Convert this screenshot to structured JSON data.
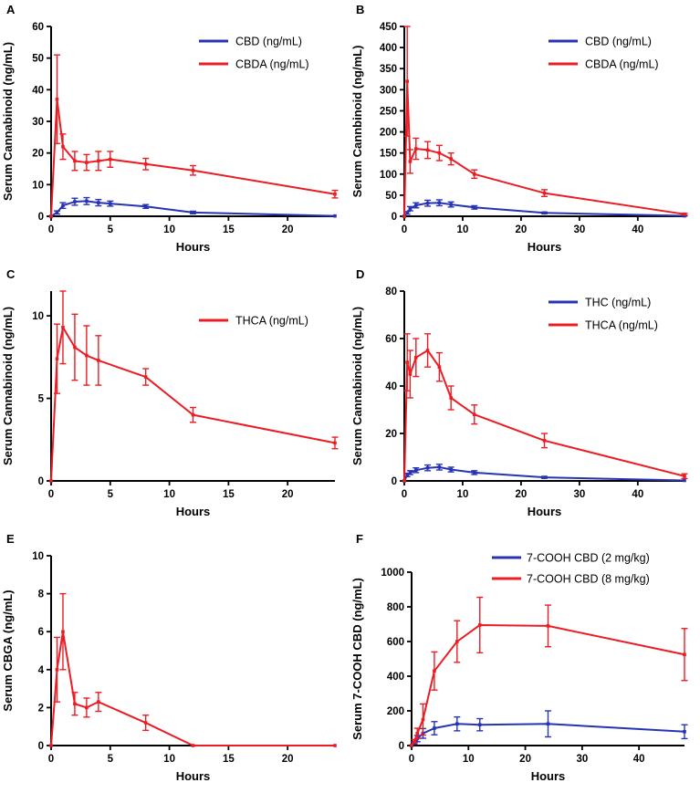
{
  "figure": {
    "background": "#ffffff",
    "accent_blue": "#2733b5",
    "accent_red": "#eb1c23"
  },
  "chart_data": [
    {
      "type": "line",
      "label": "A",
      "xlabel": "Hours",
      "ylabel": "Serum Cannabinoid (ng/mL)",
      "xlim": [
        0,
        24
      ],
      "ylim": [
        0,
        60
      ],
      "xticks": [
        0,
        5,
        10,
        15,
        20
      ],
      "yticks": [
        0,
        10,
        20,
        30,
        40,
        50,
        60
      ],
      "grid": false,
      "legend_position": "top-right",
      "series": [
        {
          "name": "CBD (ng/mL)",
          "color": "#2733b5",
          "x": [
            0,
            0.5,
            1,
            2,
            3,
            4,
            5,
            8,
            12,
            24
          ],
          "y": [
            0,
            1.2,
            3.4,
            4.6,
            4.8,
            4.3,
            4.0,
            3.1,
            1.2,
            0.1
          ],
          "err": [
            0,
            0.5,
            0.9,
            1.1,
            1.1,
            1.0,
            0.8,
            0.6,
            0.4,
            0
          ]
        },
        {
          "name": "CBDA (ng/mL)",
          "color": "#eb1c23",
          "x": [
            0,
            0.5,
            1,
            2,
            3,
            4,
            5,
            8,
            12,
            24
          ],
          "y": [
            0,
            37,
            22,
            17.5,
            17,
            17.5,
            18,
            16.5,
            14.5,
            7
          ],
          "err": [
            0,
            14,
            4,
            3,
            2.5,
            3,
            2.5,
            1.8,
            1.5,
            1.2
          ]
        }
      ]
    },
    {
      "type": "line",
      "label": "B",
      "xlabel": "Hours",
      "ylabel": "Serum Cannbinoid (ng/mL)",
      "xlim": [
        0,
        48
      ],
      "ylim": [
        0,
        450
      ],
      "xticks": [
        0,
        10,
        20,
        30,
        40
      ],
      "yticks": [
        0,
        50,
        100,
        150,
        200,
        250,
        300,
        350,
        400,
        450
      ],
      "grid": false,
      "legend_position": "top-right",
      "series": [
        {
          "name": "CBD (ng/mL)",
          "color": "#2733b5",
          "x": [
            0,
            0.5,
            1,
            2,
            4,
            6,
            8,
            12,
            24,
            48
          ],
          "y": [
            0,
            8,
            18,
            26,
            31,
            32,
            28,
            21,
            8,
            1
          ],
          "err": [
            0,
            3,
            5,
            6,
            7,
            7,
            6,
            4,
            2,
            0.5
          ]
        },
        {
          "name": "CBDA (ng/mL)",
          "color": "#eb1c23",
          "x": [
            0,
            0.5,
            1,
            2,
            4,
            6,
            8,
            12,
            24,
            48
          ],
          "y": [
            0,
            320,
            130,
            160,
            157,
            150,
            136,
            100,
            55,
            5
          ],
          "err": [
            0,
            130,
            28,
            25,
            20,
            18,
            14,
            10,
            8,
            2
          ]
        }
      ]
    },
    {
      "type": "line",
      "label": "C",
      "xlabel": "Hours",
      "ylabel": "Serum Cannabinoid (ng/mL)",
      "xlim": [
        0,
        24
      ],
      "ylim": [
        0,
        11.5
      ],
      "xticks": [
        0,
        5,
        10,
        15,
        20
      ],
      "yticks": [
        0,
        5,
        10
      ],
      "grid": false,
      "legend_position": "right",
      "series": [
        {
          "name": "THCA (ng/mL)",
          "color": "#eb1c23",
          "x": [
            0,
            0.5,
            1,
            2,
            3,
            4,
            8,
            12,
            24
          ],
          "y": [
            0,
            7.4,
            9.3,
            8.1,
            7.6,
            7.3,
            6.3,
            4.0,
            2.3
          ],
          "err": [
            0,
            2.1,
            2.2,
            2.0,
            1.8,
            1.5,
            0.5,
            0.45,
            0.35
          ]
        }
      ]
    },
    {
      "type": "line",
      "label": "D",
      "xlabel": "Hours",
      "ylabel": "Serum Cannabinoid (ng/mL)",
      "xlim": [
        0,
        48
      ],
      "ylim": [
        0,
        80
      ],
      "xticks": [
        0,
        10,
        20,
        30,
        40
      ],
      "yticks": [
        0,
        20,
        40,
        60,
        80
      ],
      "grid": false,
      "legend_position": "top-right",
      "series": [
        {
          "name": "THC (ng/mL)",
          "color": "#2733b5",
          "x": [
            0,
            0.5,
            1,
            2,
            4,
            6,
            8,
            12,
            24,
            48
          ],
          "y": [
            0,
            2.5,
            3.5,
            4.5,
            5.5,
            5.8,
            4.8,
            3.5,
            1.5,
            0.2
          ],
          "err": [
            0,
            0.7,
            0.8,
            1,
            1.2,
            1.2,
            1,
            0.8,
            0.4,
            0
          ]
        },
        {
          "name": "THCA (ng/mL)",
          "color": "#eb1c23",
          "x": [
            0,
            0.5,
            1,
            2,
            4,
            6,
            8,
            12,
            24,
            48
          ],
          "y": [
            0,
            50,
            45,
            52,
            55,
            48,
            35,
            28,
            17,
            2
          ],
          "err": [
            0,
            12,
            10,
            8,
            7,
            6,
            5,
            4,
            3,
            1
          ]
        }
      ]
    },
    {
      "type": "line",
      "label": "E",
      "xlabel": "Hours",
      "ylabel": "Serum CBGA (ng/mL)",
      "xlim": [
        0,
        24
      ],
      "ylim": [
        0,
        10
      ],
      "xticks": [
        0,
        5,
        10,
        15,
        20
      ],
      "yticks": [
        0,
        2,
        4,
        6,
        8,
        10
      ],
      "grid": false,
      "legend_position": "none",
      "series": [
        {
          "name": "CBGA (ng/mL)",
          "color": "#eb1c23",
          "x": [
            0,
            0.5,
            1,
            2,
            3,
            4,
            8,
            12,
            24
          ],
          "y": [
            0,
            4,
            6,
            2.2,
            2,
            2.3,
            1.2,
            0,
            0
          ],
          "err": [
            0,
            1.7,
            2,
            0.6,
            0.5,
            0.5,
            0.4,
            0,
            0
          ]
        }
      ]
    },
    {
      "type": "line",
      "label": "F",
      "xlabel": "Hours",
      "ylabel": "Serum 7-COOH CBD (ng/mL)",
      "xlim": [
        0,
        48
      ],
      "ylim": [
        0,
        1000
      ],
      "xticks": [
        0,
        10,
        20,
        30,
        40
      ],
      "yticks": [
        0,
        200,
        400,
        600,
        800,
        1000
      ],
      "grid": false,
      "legend_position": "top-right",
      "series": [
        {
          "name": "7-COOH CBD (2 mg/kg)",
          "color": "#2733b5",
          "x": [
            0,
            0.5,
            1,
            2,
            4,
            8,
            12,
            24,
            48
          ],
          "y": [
            0,
            15,
            40,
            70,
            100,
            125,
            120,
            125,
            80
          ],
          "err": [
            0,
            8,
            18,
            28,
            38,
            40,
            35,
            75,
            40
          ]
        },
        {
          "name": "7-COOH CBD (8 mg/kg)",
          "color": "#eb1c23",
          "x": [
            0,
            0.5,
            1,
            2,
            4,
            8,
            12,
            24,
            48
          ],
          "y": [
            0,
            25,
            70,
            150,
            430,
            600,
            695,
            690,
            525
          ],
          "err": [
            0,
            10,
            30,
            90,
            110,
            120,
            160,
            120,
            150
          ]
        }
      ]
    }
  ]
}
